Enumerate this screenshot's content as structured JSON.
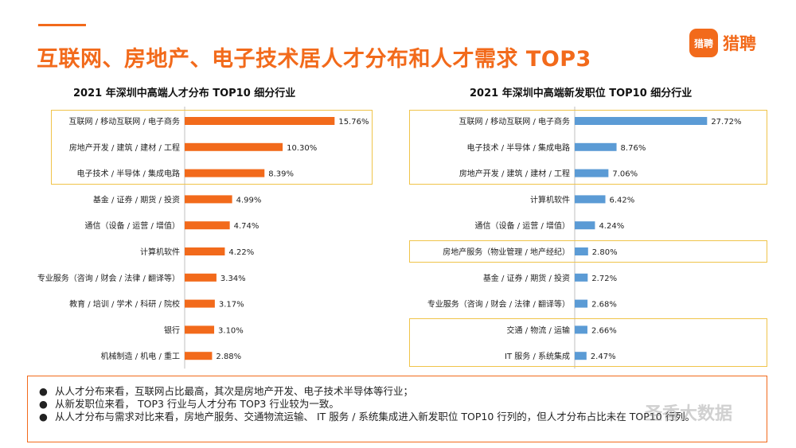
{
  "page": {
    "title": "互联网、房地产、电子技术居人才分布和人才需求 TOP3",
    "logo_badge": "猎聘",
    "logo_text": "猎聘"
  },
  "colors": {
    "accent": "#f26a1b",
    "bar_left": "#f26a1b",
    "bar_right": "#5b9bd5",
    "highlight": "#f0c44a"
  },
  "chart_data": [
    {
      "type": "bar",
      "orientation": "horizontal",
      "title": "2021 年深圳中高端人才分布 TOP10 细分行业",
      "categories": [
        "互联网 / 移动互联网 / 电子商务",
        "房地产开发 / 建筑 / 建材 / 工程",
        "电子技术 / 半导体 / 集成电路",
        "基金 / 证券 / 期货 / 投资",
        "通信（设备 / 运营 / 增值）",
        "计算机软件",
        "专业服务（咨询 / 财会 / 法律 / 翻译等）",
        "教育 / 培训 / 学术 / 科研 / 院校",
        "银行",
        "机械制造 / 机电 / 重工"
      ],
      "values": [
        15.76,
        10.3,
        8.39,
        4.99,
        4.74,
        4.22,
        3.34,
        3.17,
        3.1,
        2.88
      ],
      "labels": [
        "15.76%",
        "10.30%",
        "8.39%",
        "4.99%",
        "4.74%",
        "4.22%",
        "3.34%",
        "3.17%",
        "3.10%",
        "2.88%"
      ],
      "unit": "%",
      "highlight_groups": [
        [
          0,
          2
        ]
      ]
    },
    {
      "type": "bar",
      "orientation": "horizontal",
      "title": "2021 年深圳中高端新发职位 TOP10 细分行业",
      "categories": [
        "互联网 / 移动互联网 / 电子商务",
        "电子技术 / 半导体 / 集成电路",
        "房地产开发 / 建筑 / 建材 / 工程",
        "计算机软件",
        "通信（设备 / 运营 / 增值）",
        "房地产服务（物业管理 / 地产经纪）",
        "基金 / 证券 / 期货 / 投资",
        "专业服务（咨询 / 财会 / 法律 / 翻译等）",
        "交通 / 物流 / 运输",
        "IT 服务 / 系统集成"
      ],
      "values": [
        27.72,
        8.76,
        7.06,
        6.42,
        4.24,
        2.8,
        2.72,
        2.68,
        2.66,
        2.47
      ],
      "labels": [
        "27.72%",
        "8.76%",
        "7.06%",
        "6.42%",
        "4.24%",
        "2.80%",
        "2.72%",
        "2.68%",
        "2.66%",
        "2.47%"
      ],
      "unit": "%",
      "highlight_groups": [
        [
          0,
          2
        ],
        [
          5,
          5
        ],
        [
          8,
          9
        ]
      ]
    }
  ],
  "notes": [
    "从人才分布来看，互联网占比最高，其次是房地产开发、电子技术半导体等行业；",
    "从新发职位来看， TOP3 行业与人才分布 TOP3 行业较为一致。",
    "从人才分布与需求对比来看，房地产服务、交通物流运输、 IT 服务 / 系统集成进入新发职位 TOP10 行列的，但人才分布占比未在 TOP10 行列。"
  ],
  "watermark": "圣香大数据"
}
